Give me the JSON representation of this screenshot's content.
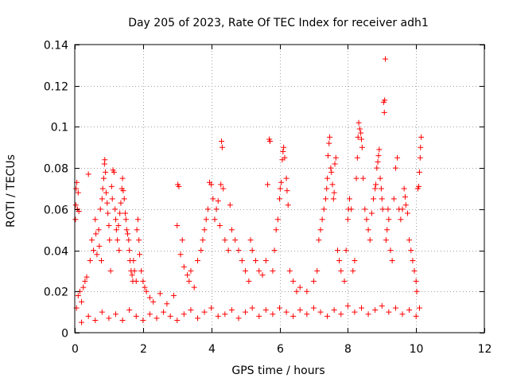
{
  "chart_data": {
    "type": "scatter",
    "title": "Day 205 of 2023, Rate Of TEC Index for receiver adh1",
    "xlabel": "GPS time / hours",
    "ylabel": "ROTI / TECUs",
    "xlim": [
      0,
      12
    ],
    "ylim": [
      0,
      0.14
    ],
    "x_ticks": [
      0,
      2,
      4,
      6,
      8,
      10,
      12
    ],
    "y_ticks": [
      0,
      0.02,
      0.04,
      0.06,
      0.08,
      0.1,
      0.12,
      0.14
    ],
    "x_tick_labels": [
      "0",
      "2",
      "4",
      "6",
      "8",
      "10",
      "12"
    ],
    "y_tick_labels": [
      "0",
      "0.02",
      "0.04",
      "0.06",
      "0.08",
      "0.1",
      "0.12",
      "0.14"
    ],
    "grid": true,
    "marker": "+",
    "color": "#ff0000",
    "series": [
      {
        "points": [
          [
            0.02,
            0.055
          ],
          [
            0.03,
            0.062
          ],
          [
            0.04,
            0.07
          ],
          [
            0.06,
            0.073
          ],
          [
            0.08,
            0.06
          ],
          [
            0.1,
            0.068
          ],
          [
            0.12,
            0.059
          ],
          [
            0.05,
            0.012
          ],
          [
            0.1,
            0.018
          ],
          [
            0.15,
            0.02
          ],
          [
            0.2,
            0.015
          ],
          [
            0.25,
            0.022
          ],
          [
            0.3,
            0.025
          ],
          [
            0.35,
            0.027
          ],
          [
            0.4,
            0.077
          ],
          [
            0.45,
            0.035
          ],
          [
            0.5,
            0.045
          ],
          [
            0.55,
            0.04
          ],
          [
            0.6,
            0.055
          ],
          [
            0.62,
            0.048
          ],
          [
            0.65,
            0.038
          ],
          [
            0.7,
            0.05
          ],
          [
            0.72,
            0.042
          ],
          [
            0.75,
            0.06
          ],
          [
            0.78,
            0.035
          ],
          [
            0.8,
            0.065
          ],
          [
            0.82,
            0.07
          ],
          [
            0.85,
            0.075
          ],
          [
            0.87,
            0.082
          ],
          [
            0.88,
            0.084
          ],
          [
            0.9,
            0.078
          ],
          [
            0.92,
            0.068
          ],
          [
            0.95,
            0.063
          ],
          [
            0.97,
            0.058
          ],
          [
            1.0,
            0.052
          ],
          [
            1.02,
            0.045
          ],
          [
            1.05,
            0.03
          ],
          [
            1.08,
            0.071
          ],
          [
            1.1,
            0.065
          ],
          [
            1.12,
            0.079
          ],
          [
            1.15,
            0.078
          ],
          [
            1.18,
            0.06
          ],
          [
            1.2,
            0.055
          ],
          [
            1.22,
            0.05
          ],
          [
            1.25,
            0.045
          ],
          [
            1.28,
            0.052
          ],
          [
            1.3,
            0.04
          ],
          [
            1.32,
            0.058
          ],
          [
            1.35,
            0.063
          ],
          [
            1.38,
            0.07
          ],
          [
            1.4,
            0.075
          ],
          [
            1.42,
            0.069
          ],
          [
            1.45,
            0.065
          ],
          [
            1.48,
            0.058
          ],
          [
            1.5,
            0.055
          ],
          [
            1.52,
            0.05
          ],
          [
            1.55,
            0.048
          ],
          [
            1.58,
            0.045
          ],
          [
            1.6,
            0.04
          ],
          [
            1.62,
            0.035
          ],
          [
            1.65,
            0.03
          ],
          [
            1.68,
            0.028
          ],
          [
            1.7,
            0.025
          ],
          [
            1.72,
            0.035
          ],
          [
            1.75,
            0.03
          ],
          [
            1.8,
            0.025
          ],
          [
            1.82,
            0.05
          ],
          [
            1.85,
            0.055
          ],
          [
            1.88,
            0.045
          ],
          [
            1.9,
            0.038
          ],
          [
            1.95,
            0.03
          ],
          [
            2.0,
            0.025
          ],
          [
            2.05,
            0.022
          ],
          [
            2.1,
            0.02
          ],
          [
            2.2,
            0.017
          ],
          [
            2.3,
            0.015
          ],
          [
            2.5,
            0.019
          ],
          [
            2.7,
            0.014
          ],
          [
            2.9,
            0.018
          ],
          [
            3.0,
            0.052
          ],
          [
            3.02,
            0.072
          ],
          [
            3.05,
            0.071
          ],
          [
            3.1,
            0.038
          ],
          [
            3.15,
            0.045
          ],
          [
            3.2,
            0.032
          ],
          [
            3.3,
            0.028
          ],
          [
            3.35,
            0.025
          ],
          [
            3.4,
            0.03
          ],
          [
            3.5,
            0.022
          ],
          [
            3.6,
            0.035
          ],
          [
            3.7,
            0.04
          ],
          [
            3.75,
            0.045
          ],
          [
            3.8,
            0.05
          ],
          [
            3.85,
            0.055
          ],
          [
            3.9,
            0.06
          ],
          [
            3.95,
            0.073
          ],
          [
            4.0,
            0.072
          ],
          [
            4.05,
            0.065
          ],
          [
            4.1,
            0.055
          ],
          [
            4.15,
            0.06
          ],
          [
            4.2,
            0.064
          ],
          [
            4.25,
            0.052
          ],
          [
            4.28,
            0.072
          ],
          [
            4.3,
            0.093
          ],
          [
            4.32,
            0.09
          ],
          [
            4.35,
            0.07
          ],
          [
            4.4,
            0.045
          ],
          [
            4.5,
            0.04
          ],
          [
            4.55,
            0.062
          ],
          [
            4.6,
            0.05
          ],
          [
            4.7,
            0.045
          ],
          [
            4.8,
            0.04
          ],
          [
            4.9,
            0.035
          ],
          [
            5.0,
            0.03
          ],
          [
            5.1,
            0.025
          ],
          [
            5.15,
            0.045
          ],
          [
            5.2,
            0.04
          ],
          [
            5.3,
            0.035
          ],
          [
            5.4,
            0.03
          ],
          [
            5.5,
            0.028
          ],
          [
            5.6,
            0.035
          ],
          [
            5.65,
            0.072
          ],
          [
            5.7,
            0.094
          ],
          [
            5.72,
            0.093
          ],
          [
            5.8,
            0.03
          ],
          [
            5.85,
            0.04
          ],
          [
            5.9,
            0.05
          ],
          [
            5.95,
            0.055
          ],
          [
            6.0,
            0.065
          ],
          [
            6.02,
            0.07
          ],
          [
            6.05,
            0.073
          ],
          [
            6.08,
            0.084
          ],
          [
            6.1,
            0.088
          ],
          [
            6.12,
            0.09
          ],
          [
            6.15,
            0.085
          ],
          [
            6.2,
            0.075
          ],
          [
            6.22,
            0.069
          ],
          [
            6.25,
            0.062
          ],
          [
            6.3,
            0.03
          ],
          [
            6.4,
            0.025
          ],
          [
            6.5,
            0.02
          ],
          [
            6.6,
            0.022
          ],
          [
            6.8,
            0.02
          ],
          [
            7.0,
            0.025
          ],
          [
            7.1,
            0.03
          ],
          [
            7.15,
            0.045
          ],
          [
            7.2,
            0.05
          ],
          [
            7.25,
            0.055
          ],
          [
            7.3,
            0.06
          ],
          [
            7.35,
            0.065
          ],
          [
            7.38,
            0.07
          ],
          [
            7.4,
            0.075
          ],
          [
            7.42,
            0.086
          ],
          [
            7.45,
            0.092
          ],
          [
            7.47,
            0.095
          ],
          [
            7.5,
            0.08
          ],
          [
            7.52,
            0.078
          ],
          [
            7.55,
            0.072
          ],
          [
            7.58,
            0.065
          ],
          [
            7.6,
            0.068
          ],
          [
            7.62,
            0.082
          ],
          [
            7.65,
            0.085
          ],
          [
            7.7,
            0.04
          ],
          [
            7.75,
            0.035
          ],
          [
            7.8,
            0.03
          ],
          [
            7.9,
            0.025
          ],
          [
            7.95,
            0.04
          ],
          [
            8.0,
            0.055
          ],
          [
            8.02,
            0.06
          ],
          [
            8.05,
            0.065
          ],
          [
            8.1,
            0.06
          ],
          [
            8.15,
            0.03
          ],
          [
            8.2,
            0.035
          ],
          [
            8.25,
            0.075
          ],
          [
            8.28,
            0.085
          ],
          [
            8.3,
            0.095
          ],
          [
            8.32,
            0.102
          ],
          [
            8.35,
            0.099
          ],
          [
            8.38,
            0.097
          ],
          [
            8.4,
            0.094
          ],
          [
            8.42,
            0.09
          ],
          [
            8.45,
            0.075
          ],
          [
            8.5,
            0.06
          ],
          [
            8.55,
            0.055
          ],
          [
            8.6,
            0.05
          ],
          [
            8.65,
            0.045
          ],
          [
            8.7,
            0.058
          ],
          [
            8.75,
            0.065
          ],
          [
            8.8,
            0.07
          ],
          [
            8.82,
            0.072
          ],
          [
            8.85,
            0.08
          ],
          [
            8.88,
            0.083
          ],
          [
            8.9,
            0.086
          ],
          [
            8.92,
            0.089
          ],
          [
            8.95,
            0.075
          ],
          [
            8.98,
            0.07
          ],
          [
            9.0,
            0.065
          ],
          [
            9.02,
            0.06
          ],
          [
            9.05,
            0.112
          ],
          [
            9.07,
            0.107
          ],
          [
            9.08,
            0.113
          ],
          [
            9.1,
            0.133
          ],
          [
            9.12,
            0.045
          ],
          [
            9.15,
            0.05
          ],
          [
            9.18,
            0.06
          ],
          [
            9.2,
            0.055
          ],
          [
            9.25,
            0.04
          ],
          [
            9.3,
            0.035
          ],
          [
            9.35,
            0.065
          ],
          [
            9.4,
            0.08
          ],
          [
            9.45,
            0.085
          ],
          [
            9.5,
            0.06
          ],
          [
            9.55,
            0.055
          ],
          [
            9.6,
            0.06
          ],
          [
            9.65,
            0.07
          ],
          [
            9.68,
            0.066
          ],
          [
            9.7,
            0.062
          ],
          [
            9.75,
            0.058
          ],
          [
            9.8,
            0.045
          ],
          [
            9.85,
            0.04
          ],
          [
            9.9,
            0.035
          ],
          [
            9.95,
            0.03
          ],
          [
            10.0,
            0.025
          ],
          [
            10.02,
            0.02
          ],
          [
            10.05,
            0.07
          ],
          [
            10.08,
            0.071
          ],
          [
            10.1,
            0.078
          ],
          [
            10.12,
            0.085
          ],
          [
            10.13,
            0.09
          ],
          [
            10.15,
            0.095
          ],
          [
            0.2,
            0.005
          ],
          [
            0.4,
            0.008
          ],
          [
            0.6,
            0.006
          ],
          [
            0.8,
            0.01
          ],
          [
            1.0,
            0.007
          ],
          [
            1.2,
            0.009
          ],
          [
            1.4,
            0.006
          ],
          [
            1.6,
            0.011
          ],
          [
            1.8,
            0.008
          ],
          [
            2.0,
            0.006
          ],
          [
            2.2,
            0.009
          ],
          [
            2.4,
            0.007
          ],
          [
            2.6,
            0.01
          ],
          [
            2.8,
            0.008
          ],
          [
            3.0,
            0.006
          ],
          [
            3.2,
            0.009
          ],
          [
            3.4,
            0.011
          ],
          [
            3.6,
            0.007
          ],
          [
            3.8,
            0.01
          ],
          [
            4.0,
            0.012
          ],
          [
            4.2,
            0.008
          ],
          [
            4.4,
            0.009
          ],
          [
            4.6,
            0.011
          ],
          [
            4.8,
            0.007
          ],
          [
            5.0,
            0.01
          ],
          [
            5.2,
            0.012
          ],
          [
            5.4,
            0.008
          ],
          [
            5.6,
            0.011
          ],
          [
            5.8,
            0.009
          ],
          [
            6.0,
            0.012
          ],
          [
            6.2,
            0.01
          ],
          [
            6.4,
            0.008
          ],
          [
            6.6,
            0.011
          ],
          [
            6.8,
            0.009
          ],
          [
            7.0,
            0.012
          ],
          [
            7.2,
            0.01
          ],
          [
            7.4,
            0.008
          ],
          [
            7.6,
            0.011
          ],
          [
            7.8,
            0.009
          ],
          [
            8.0,
            0.013
          ],
          [
            8.2,
            0.01
          ],
          [
            8.4,
            0.012
          ],
          [
            8.6,
            0.009
          ],
          [
            8.8,
            0.011
          ],
          [
            9.0,
            0.013
          ],
          [
            9.2,
            0.01
          ],
          [
            9.4,
            0.012
          ],
          [
            9.6,
            0.009
          ],
          [
            9.8,
            0.011
          ],
          [
            10.0,
            0.008
          ],
          [
            10.1,
            0.012
          ]
        ]
      }
    ]
  }
}
